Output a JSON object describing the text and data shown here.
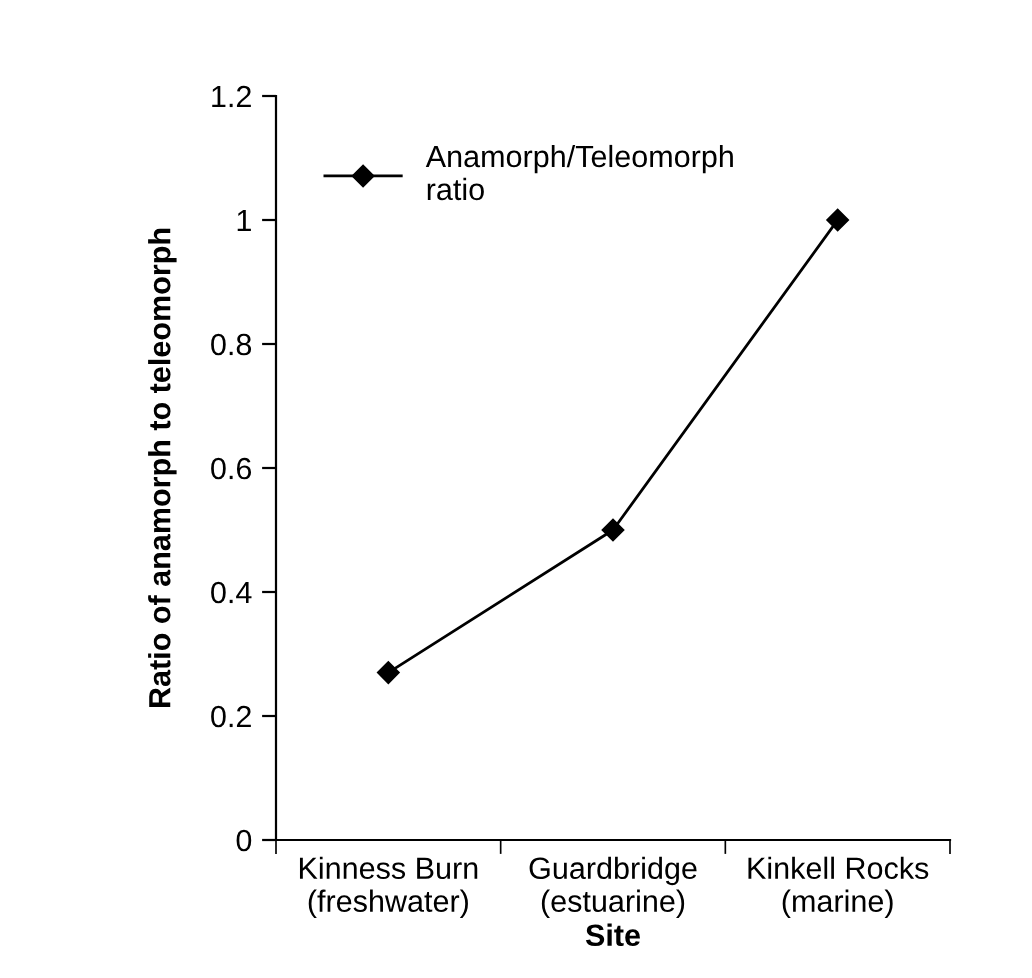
{
  "chart_data": {
    "type": "line",
    "xlabel": "Site",
    "ylabel": "Ratio of anamorph to teleomorph",
    "categories": [
      "Kinness Burn\n(freshwater)",
      "Guardbridge\n(estuarine)",
      "Kinkell Rocks\n(marine)"
    ],
    "series": [
      {
        "name": "Anamorph/Teleomorph\nratio",
        "color": "#000000",
        "values": [
          0.27,
          0.5,
          1.0
        ]
      }
    ],
    "ylim": [
      0,
      1.2
    ],
    "yticks": [
      0,
      0.2,
      0.4,
      0.6,
      0.8,
      1,
      1.2
    ],
    "grid": false,
    "legend": "top left",
    "marker": "diamond",
    "line_style": "solid"
  }
}
